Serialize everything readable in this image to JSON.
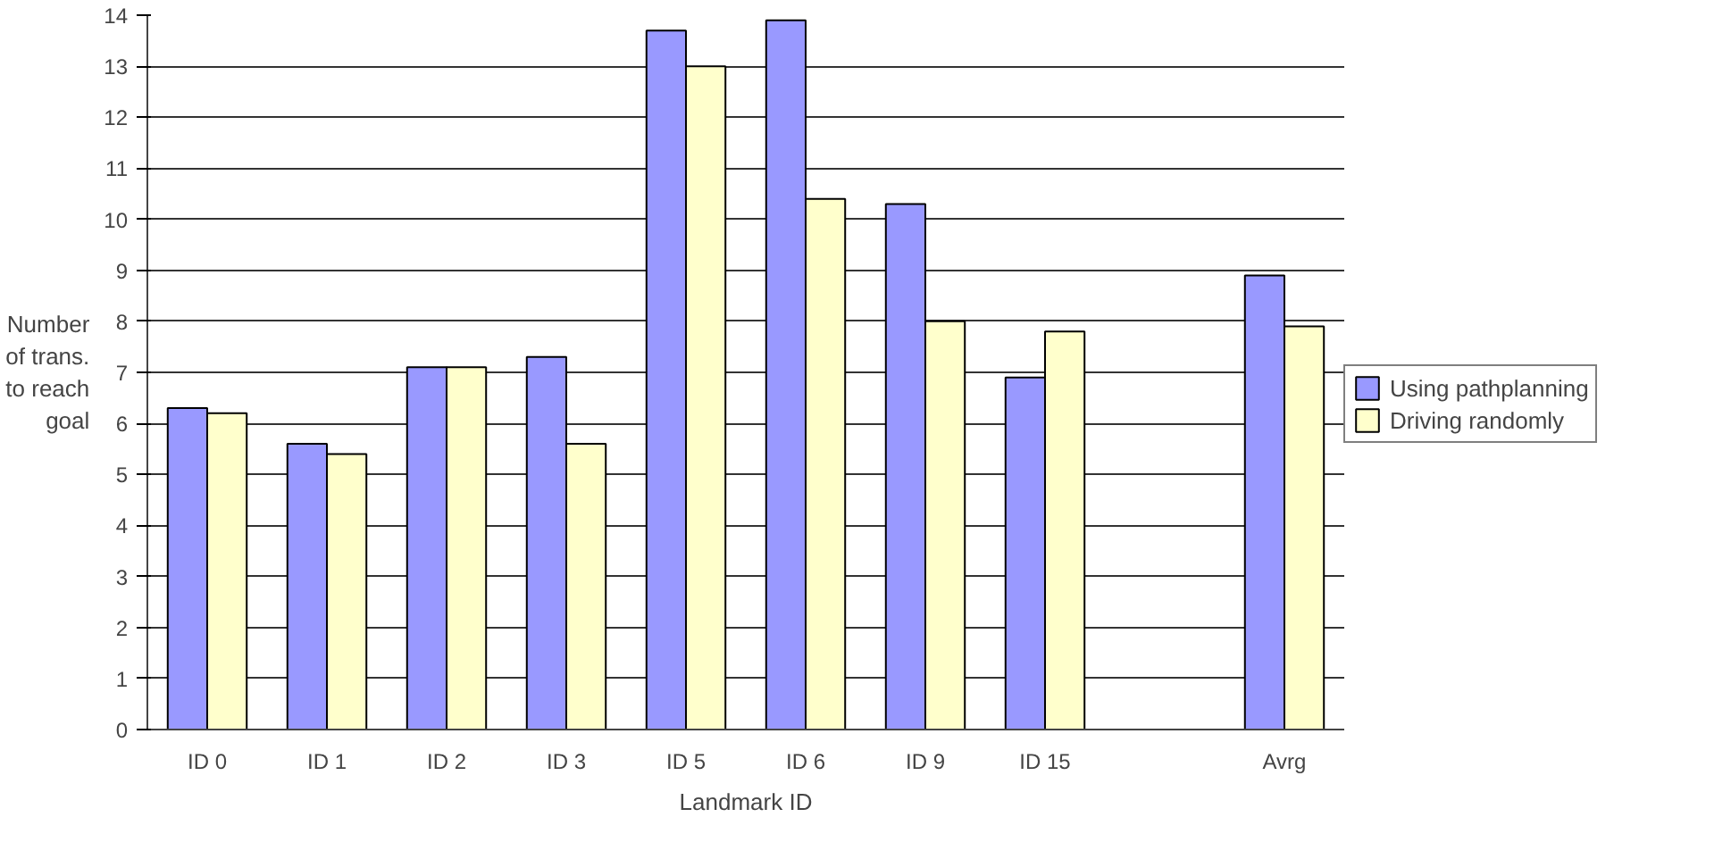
{
  "chart_data": {
    "type": "bar",
    "xlabel": "Landmark ID",
    "ylabel": "Number\nof trans.\nto reach\ngoal",
    "categories": [
      "ID 0",
      "ID 1",
      "ID 2",
      "ID 3",
      "ID 5",
      "ID 6",
      "ID 9",
      "ID 15",
      null,
      "Avrg"
    ],
    "series": [
      {
        "name": "Using pathplanning",
        "color": "#9999ff",
        "values": [
          6.3,
          5.6,
          7.1,
          7.3,
          13.7,
          13.9,
          10.3,
          6.9,
          null,
          8.9
        ]
      },
      {
        "name": "Driving randomly",
        "color": "#ffffcc",
        "values": [
          6.2,
          5.4,
          7.1,
          5.6,
          13.0,
          10.4,
          8.0,
          7.8,
          null,
          7.9
        ]
      }
    ],
    "ylim": [
      0,
      14
    ],
    "yticks": [
      0,
      1,
      2,
      3,
      4,
      5,
      6,
      7,
      8,
      9,
      10,
      11,
      12,
      13,
      14
    ],
    "grid": "y",
    "legend": "right"
  }
}
